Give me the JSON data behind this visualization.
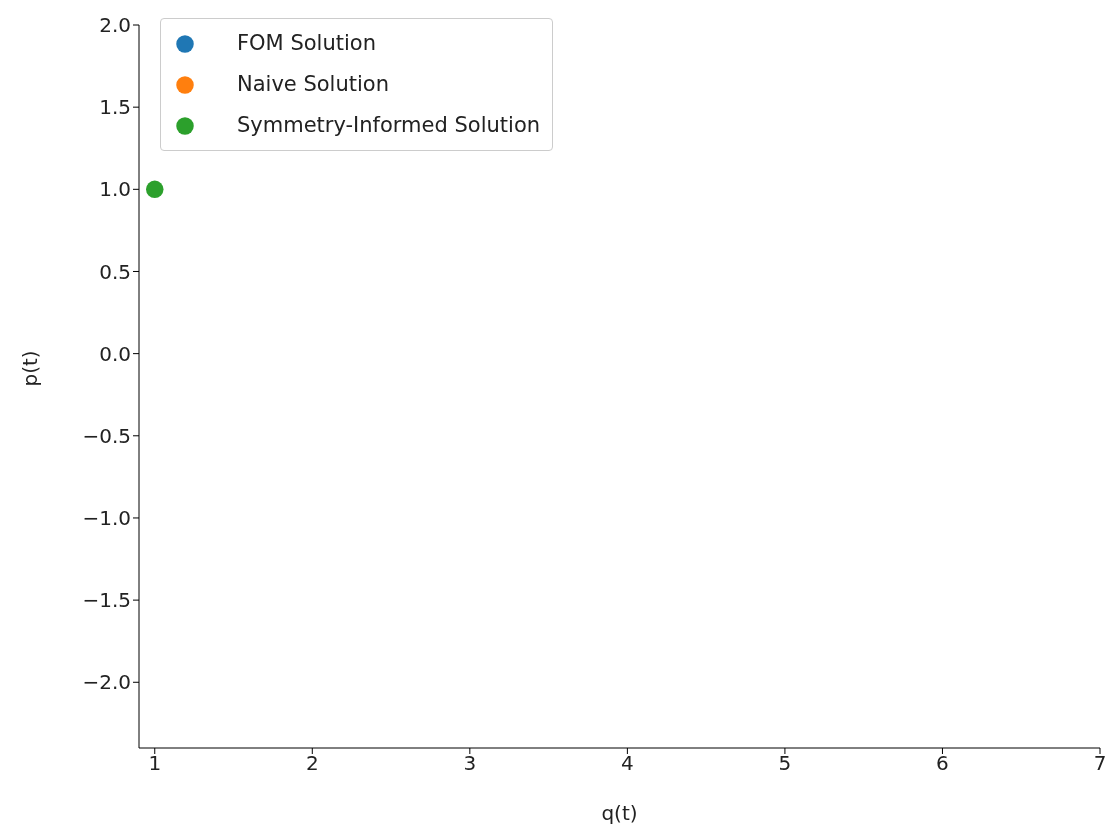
{
  "chart_data": {
    "type": "scatter",
    "xlabel": "q(t)",
    "ylabel": "p(t)",
    "xlim": [
      0.9,
      7
    ],
    "xticks": [
      1,
      2,
      3,
      4,
      5,
      6,
      7
    ],
    "ylim": [
      -2.4,
      2.0
    ],
    "yticks": [
      {
        "value": -2,
        "label": "−2.0"
      },
      {
        "value": -1.5,
        "label": "−1.5"
      },
      {
        "value": -1,
        "label": "−1.0"
      },
      {
        "value": -0.5,
        "label": "−0.5"
      },
      {
        "value": 0,
        "label": "0.0"
      },
      {
        "value": 0.5,
        "label": "0.5"
      },
      {
        "value": 1,
        "label": "1.0"
      },
      {
        "value": 1.5,
        "label": "1.5"
      },
      {
        "value": 2,
        "label": "2.0"
      }
    ],
    "grid": false,
    "legend": "top left",
    "marker": "circle",
    "series": [
      {
        "name": "FOM Solution",
        "color": "#1f77b4",
        "x": [
          null
        ],
        "values": [
          null
        ]
      },
      {
        "name": "Naive Solution",
        "color": "#ff7f0e",
        "x": [
          null
        ],
        "values": [
          null
        ]
      },
      {
        "name": "Symmetry-Informed Solution",
        "color": "#2ca02c",
        "x": [
          1
        ],
        "values": [
          1.0
        ]
      }
    ]
  }
}
